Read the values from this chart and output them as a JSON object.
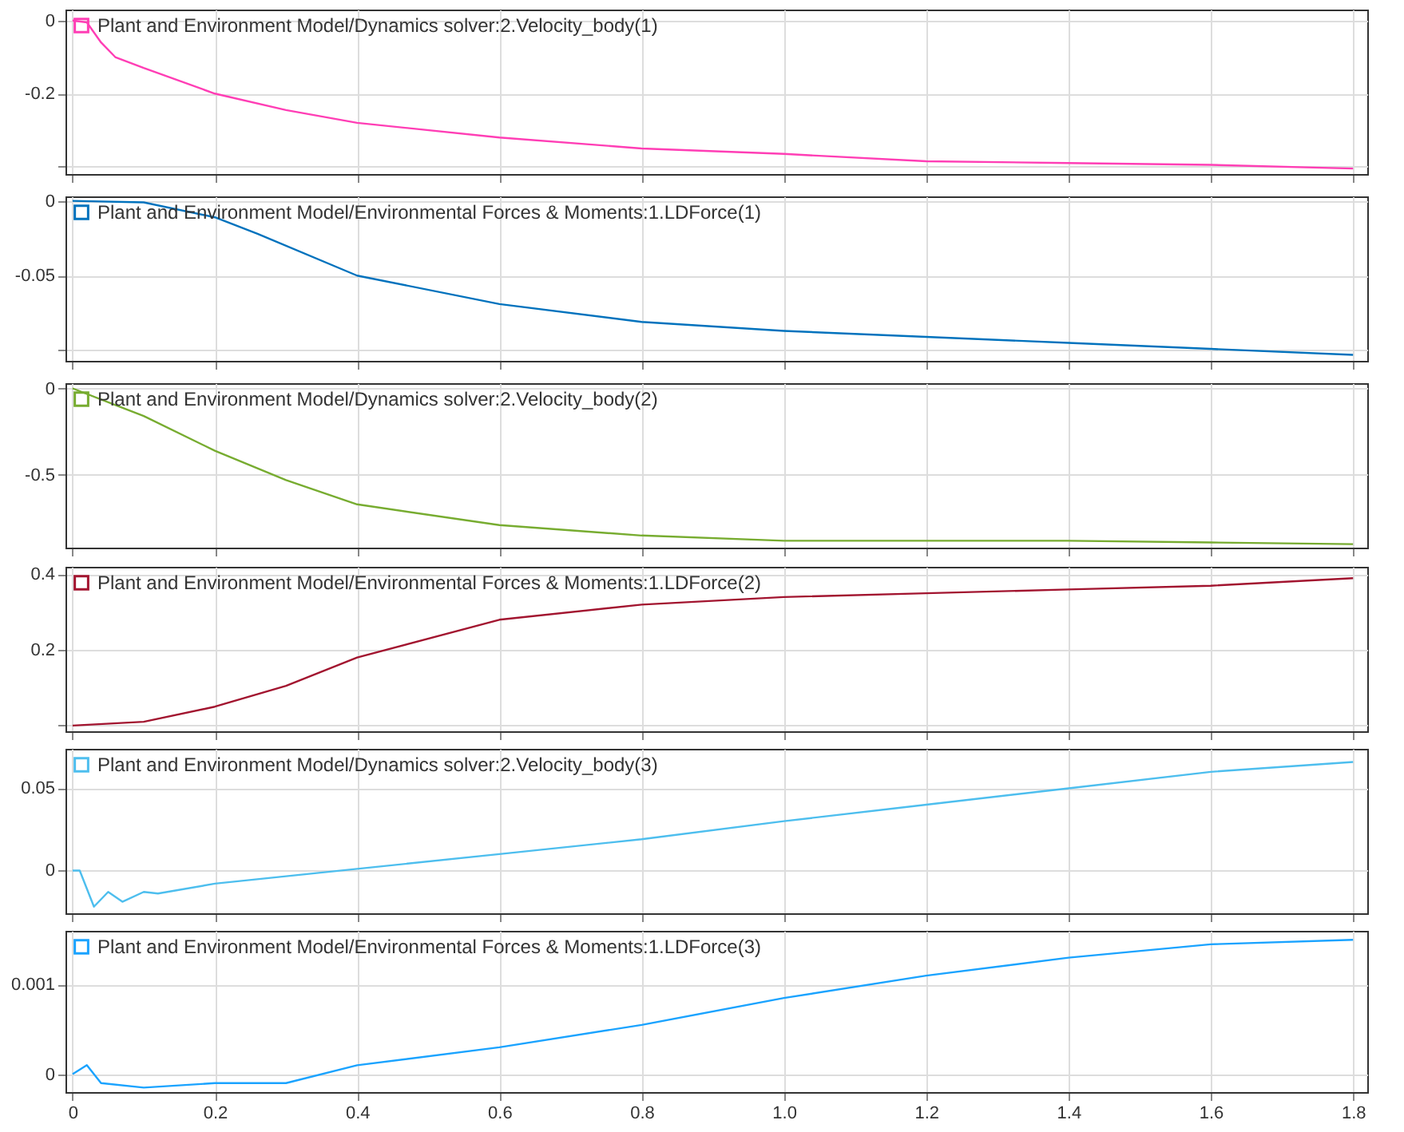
{
  "chart_data": [
    {
      "type": "line",
      "x": [
        0,
        0.02,
        0.04,
        0.06,
        0.1,
        0.2,
        0.3,
        0.4,
        0.6,
        0.8,
        1.0,
        1.2,
        1.4,
        1.6,
        1.8
      ],
      "series": [
        {
          "name": "Plant and Environment Model/Dynamics solver:2.Velocity_body(1)",
          "color": "#ff3eb5",
          "values": [
            0,
            -0.005,
            -0.06,
            -0.1,
            -0.13,
            -0.2,
            -0.245,
            -0.28,
            -0.32,
            -0.35,
            -0.365,
            -0.385,
            -0.39,
            -0.395,
            -0.405
          ]
        }
      ],
      "xlim": [
        -0.01,
        1.82
      ],
      "xticks": [
        0,
        0.2,
        0.4,
        0.6,
        0.8,
        1.0,
        1.2,
        1.4,
        1.6,
        1.8
      ],
      "ylim": [
        -0.42,
        0.03
      ],
      "yticks": [
        0,
        -0.2,
        {
          "value": -0.4,
          "label": null
        }
      ],
      "grid": true,
      "legend": "top left",
      "tick_labels": "y"
    },
    {
      "type": "line",
      "x": [
        0,
        0.1,
        0.2,
        0.26,
        0.4,
        0.6,
        0.8,
        1.0,
        1.2,
        1.4,
        1.6,
        1.8
      ],
      "series": [
        {
          "name": "Plant and Environment Model/Environmental Forces & Moments:1.LDForce(1)",
          "color": "#0072bd",
          "values": [
            0,
            -0.001,
            -0.011,
            -0.022,
            -0.05,
            -0.069,
            -0.081,
            -0.087,
            -0.091,
            -0.095,
            -0.099,
            -0.103
          ]
        }
      ],
      "xlim": [
        -0.01,
        1.82
      ],
      "xticks": [
        0,
        0.2,
        0.4,
        0.6,
        0.8,
        1.0,
        1.2,
        1.4,
        1.6,
        1.8
      ],
      "ylim": [
        -0.107,
        0.003
      ],
      "yticks": [
        0,
        -0.05,
        {
          "value": -0.1,
          "label": null
        }
      ],
      "grid": true,
      "legend": "top left",
      "tick_labels": "y"
    },
    {
      "type": "line",
      "x": [
        0,
        0.1,
        0.2,
        0.3,
        0.4,
        0.6,
        0.8,
        1.0,
        1.2,
        1.4,
        1.6,
        1.8
      ],
      "series": [
        {
          "name": "Plant and Environment Model/Dynamics solver:2.Velocity_body(2)",
          "color": "#77ac30",
          "values": [
            0,
            -0.16,
            -0.36,
            -0.53,
            -0.67,
            -0.79,
            -0.85,
            -0.88,
            -0.88,
            -0.88,
            -0.89,
            -0.9
          ]
        }
      ],
      "xlim": [
        -0.01,
        1.82
      ],
      "xticks": [
        0,
        0.2,
        0.4,
        0.6,
        0.8,
        1.0,
        1.2,
        1.4,
        1.6,
        1.8
      ],
      "ylim": [
        -0.92,
        0.03
      ],
      "yticks": [
        0,
        -0.5
      ],
      "grid": true,
      "legend": "top left",
      "tick_labels": "y"
    },
    {
      "type": "line",
      "x": [
        0,
        0.1,
        0.2,
        0.3,
        0.4,
        0.6,
        0.8,
        1.0,
        1.2,
        1.4,
        1.6,
        1.8
      ],
      "series": [
        {
          "name": "Plant and Environment Model/Environmental Forces & Moments:1.LDForce(2)",
          "color": "#a2142f",
          "values": [
            0,
            0.01,
            0.05,
            0.105,
            0.18,
            0.28,
            0.32,
            0.34,
            0.35,
            0.36,
            0.37,
            0.39
          ]
        }
      ],
      "xlim": [
        -0.01,
        1.82
      ],
      "xticks": [
        0,
        0.2,
        0.4,
        0.6,
        0.8,
        1.0,
        1.2,
        1.4,
        1.6,
        1.8
      ],
      "ylim": [
        -0.015,
        0.42
      ],
      "yticks": [
        0.4,
        0.2,
        {
          "value": 0,
          "label": null
        }
      ],
      "grid": true,
      "legend": "top left",
      "tick_labels": "y"
    },
    {
      "type": "line",
      "x": [
        0,
        0.01,
        0.03,
        0.05,
        0.07,
        0.1,
        0.12,
        0.2,
        0.4,
        0.6,
        0.8,
        1.0,
        1.2,
        1.4,
        1.6,
        1.8
      ],
      "series": [
        {
          "name": "Plant and Environment Model/Dynamics solver:2.Velocity_body(3)",
          "color": "#4dbeee",
          "values": [
            0,
            0,
            -0.022,
            -0.013,
            -0.019,
            -0.013,
            -0.014,
            -0.008,
            0.001,
            0.01,
            0.019,
            0.03,
            0.04,
            0.05,
            0.06,
            0.066
          ]
        }
      ],
      "xlim": [
        -0.01,
        1.82
      ],
      "xticks": [
        0,
        0.2,
        0.4,
        0.6,
        0.8,
        1.0,
        1.2,
        1.4,
        1.6,
        1.8
      ],
      "ylim": [
        -0.026,
        0.074
      ],
      "yticks": [
        0.05,
        0
      ],
      "grid": true,
      "legend": "top left",
      "tick_labels": "y"
    },
    {
      "type": "line",
      "x": [
        0,
        0.02,
        0.04,
        0.1,
        0.2,
        0.3,
        0.4,
        0.6,
        0.8,
        1.0,
        1.2,
        1.4,
        1.6,
        1.8
      ],
      "series": [
        {
          "name": "Plant and Environment Model/Environmental Forces & Moments:1.LDForce(3)",
          "color": "#1aa3ff",
          "values": [
            0,
            0.0001,
            -0.0001,
            -0.00015,
            -0.0001,
            -0.0001,
            0.0001,
            0.0003,
            0.00055,
            0.00085,
            0.0011,
            0.0013,
            0.00145,
            0.0015
          ]
        }
      ],
      "xlim": [
        -0.01,
        1.82
      ],
      "xticks": [
        0,
        0.2,
        0.4,
        0.6,
        0.8,
        {
          "value": 1.0,
          "label": "1.0"
        },
        1.2,
        1.4,
        1.6,
        1.8
      ],
      "ylim": [
        -0.0002,
        0.0016
      ],
      "yticks": [
        0.001,
        0
      ],
      "grid": true,
      "legend": "top left"
    }
  ]
}
